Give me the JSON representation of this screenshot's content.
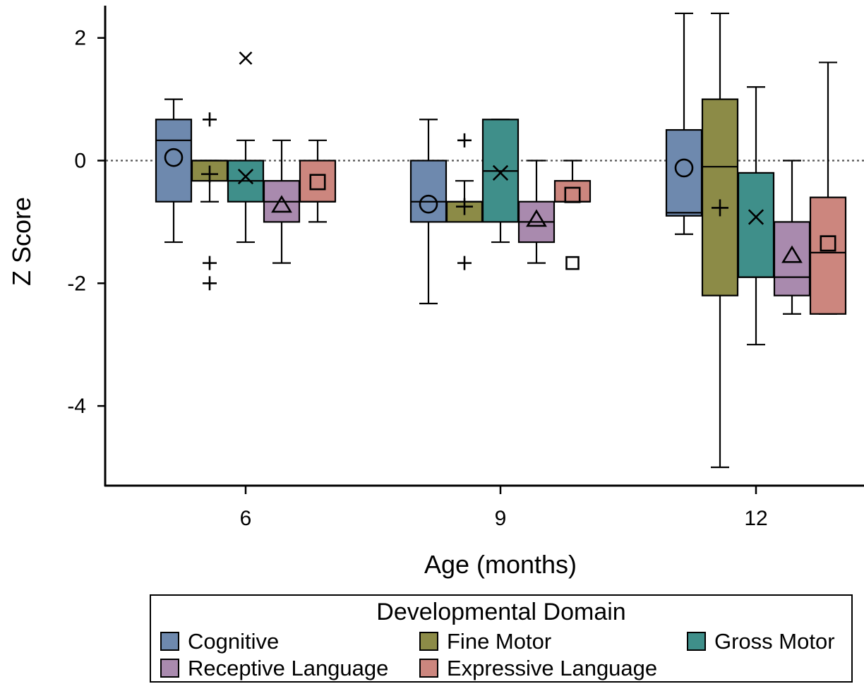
{
  "chart_data": {
    "type": "box",
    "xlabel": "Age (months)",
    "ylabel": "Z Score",
    "ylim": [
      -5.3,
      2.5
    ],
    "yticks": [
      "2",
      "0",
      "-2",
      "-4"
    ],
    "ytick_values": [
      2,
      0,
      -2,
      -4
    ],
    "categories": [
      "6",
      "9",
      "12"
    ],
    "reference_line": 0,
    "legend": {
      "title": "Developmental Domain",
      "placement": "bottom"
    },
    "series": [
      {
        "name": "Cognitive",
        "color": "#6E89AE",
        "marker": "circle",
        "boxes": [
          {
            "min": -1.33,
            "q1": -0.67,
            "median": 0.33,
            "q3": 0.67,
            "max": 1.0,
            "mean": 0.05,
            "outliers": []
          },
          {
            "min": -2.33,
            "q1": -1.0,
            "median": -0.67,
            "q3": 0.0,
            "max": 0.67,
            "mean": -0.71,
            "outliers": []
          },
          {
            "min": -1.2,
            "q1": -0.9,
            "median": -0.85,
            "q3": 0.5,
            "max": 2.4,
            "mean": -0.12,
            "outliers": []
          }
        ]
      },
      {
        "name": "Fine Motor",
        "color": "#8C8B47",
        "marker": "plus",
        "boxes": [
          {
            "min": -0.67,
            "q1": -0.33,
            "median": 0.0,
            "q3": 0.0,
            "max": 0.0,
            "mean": -0.22,
            "outliers": [
              0.67,
              -1.67,
              -2.0
            ]
          },
          {
            "min": -1.0,
            "q1": -1.0,
            "median": -0.67,
            "q3": -0.67,
            "max": -0.33,
            "mean": -0.75,
            "outliers": [
              0.33,
              -1.67
            ]
          },
          {
            "min": -5.0,
            "q1": -2.2,
            "median": -0.1,
            "q3": 1.0,
            "max": 2.4,
            "mean": -0.77,
            "outliers": []
          }
        ]
      },
      {
        "name": "Gross Motor",
        "color": "#3F8F8A",
        "marker": "x",
        "boxes": [
          {
            "min": -1.33,
            "q1": -0.67,
            "median": -0.33,
            "q3": 0.0,
            "max": 0.33,
            "mean": -0.26,
            "outliers": [
              1.67
            ]
          },
          {
            "min": -1.33,
            "q1": -1.0,
            "median": -0.17,
            "q3": 0.67,
            "max": 0.67,
            "mean": -0.2,
            "outliers": []
          },
          {
            "min": -3.0,
            "q1": -1.9,
            "median": -1.9,
            "q3": -0.2,
            "max": 1.2,
            "mean": -0.92,
            "outliers": []
          }
        ]
      },
      {
        "name": "Receptive Language",
        "color": "#A98AAE",
        "marker": "triangle",
        "boxes": [
          {
            "min": -1.67,
            "q1": -1.0,
            "median": -0.67,
            "q3": -0.33,
            "max": 0.33,
            "mean": -0.73,
            "outliers": []
          },
          {
            "min": -1.67,
            "q1": -1.33,
            "median": -1.0,
            "q3": -0.67,
            "max": 0.0,
            "mean": -0.96,
            "outliers": []
          },
          {
            "min": -2.5,
            "q1": -2.2,
            "median": -1.9,
            "q3": -1.0,
            "max": 0.0,
            "mean": -1.55,
            "outliers": []
          }
        ]
      },
      {
        "name": "Expressive Language",
        "color": "#CC867E",
        "marker": "square",
        "boxes": [
          {
            "min": -1.0,
            "q1": -0.67,
            "median": -0.67,
            "q3": 0.0,
            "max": 0.33,
            "mean": -0.35,
            "outliers": []
          },
          {
            "min": -0.67,
            "q1": -0.67,
            "median": -0.67,
            "q3": -0.33,
            "max": 0.0,
            "mean": -0.56,
            "outliers": [
              -1.67
            ]
          },
          {
            "min": -2.5,
            "q1": -2.5,
            "median": -1.5,
            "q3": -0.6,
            "max": 1.6,
            "mean": -1.35,
            "outliers": []
          }
        ]
      }
    ]
  }
}
